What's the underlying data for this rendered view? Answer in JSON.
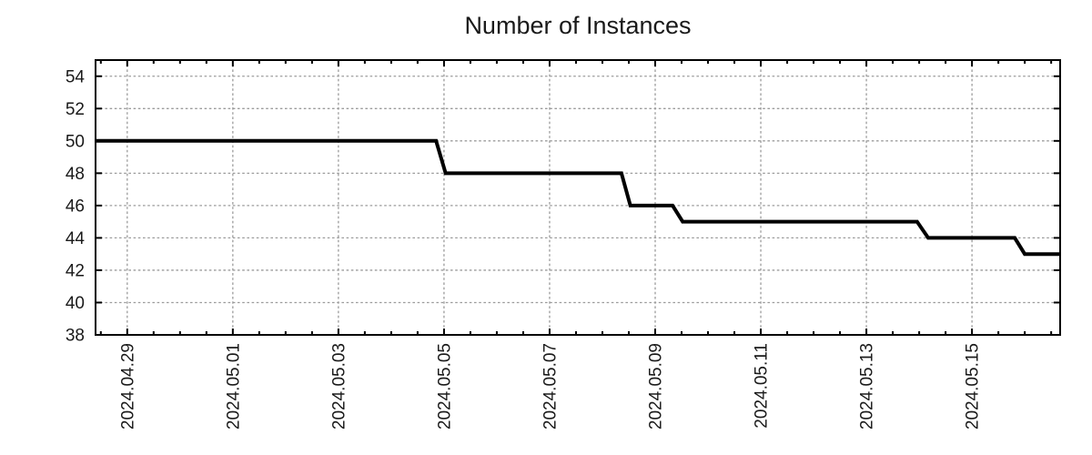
{
  "chart_data": {
    "type": "line",
    "title": "Number of Instances",
    "legend": null,
    "grid": {
      "show": true,
      "color": "#9c9c9c",
      "dash": "2.6 2.6"
    },
    "colors": {
      "axis": "#000000",
      "tick_text": "#1a1a1a",
      "line": "#000000"
    },
    "x_axis": {
      "label": "",
      "tick_labels": [
        "2024.04.29",
        "2024.05.01",
        "2024.05.03",
        "2024.05.05",
        "2024.05.07",
        "2024.05.09",
        "2024.05.11",
        "2024.05.13",
        "2024.05.15"
      ],
      "major_tick_day_offsets": [
        0,
        2,
        4,
        6,
        8,
        10,
        12,
        14,
        16
      ],
      "minor_tick_interval_days": 0.5,
      "range_days": [
        -0.6,
        17.67
      ]
    },
    "y_axis": {
      "label": "",
      "tick_values": [
        38,
        40,
        42,
        44,
        46,
        48,
        50,
        52,
        54
      ],
      "range": [
        38,
        55
      ]
    },
    "series": [
      {
        "name": "instances",
        "color": "#000000",
        "line_width": 4,
        "points_day_value": [
          [
            -0.6,
            50
          ],
          [
            5.85,
            50
          ],
          [
            6.03,
            48
          ],
          [
            9.36,
            48
          ],
          [
            9.53,
            46
          ],
          [
            10.33,
            46
          ],
          [
            10.52,
            45
          ],
          [
            14.96,
            45
          ],
          [
            15.17,
            44
          ],
          [
            16.81,
            44
          ],
          [
            17.0,
            43
          ],
          [
            17.67,
            43
          ]
        ]
      }
    ],
    "segments_readout": [
      {
        "value": 50,
        "until": "2024.05.05"
      },
      {
        "value": 48,
        "from": "2024.05.05",
        "until": "2024.05.08"
      },
      {
        "value": 46,
        "from": "2024.05.08",
        "until": "2024.05.09"
      },
      {
        "value": 45,
        "from": "2024.05.09",
        "until": "2024.05.14"
      },
      {
        "value": 44,
        "from": "2024.05.14",
        "until": "2024.05.16"
      },
      {
        "value": 43,
        "from": "2024.05.16"
      }
    ]
  }
}
